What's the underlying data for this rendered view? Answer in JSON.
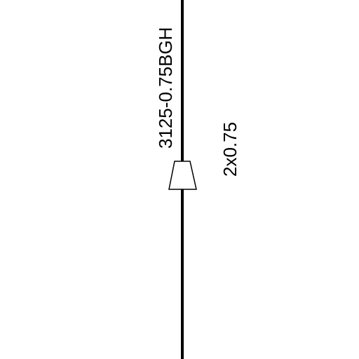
{
  "diagram": {
    "cable_label": "3125-0.75BGH",
    "cable_spec": "2x0.75",
    "colors": {
      "line": "#000000",
      "background": "#ffffff",
      "text": "#000000"
    },
    "symbols": {
      "connector": "tapered-connector-icon"
    }
  }
}
